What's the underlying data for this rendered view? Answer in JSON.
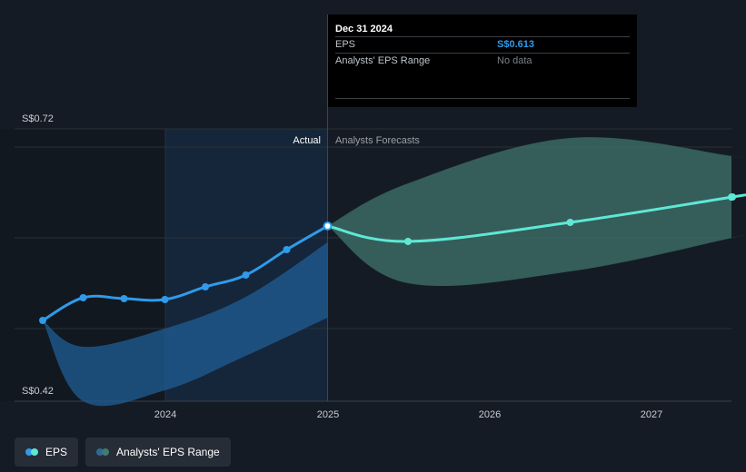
{
  "chart_data": {
    "type": "line",
    "y_axis": {
      "top_label": "S$0.72",
      "bottom_label": "S$0.42",
      "ylim": [
        0.42,
        0.72
      ]
    },
    "x_ticks": [
      "2024",
      "2025",
      "2026",
      "2027"
    ],
    "regions": {
      "actual": "Actual",
      "forecast": "Analysts Forecasts"
    },
    "series": [
      {
        "name": "EPS",
        "actual": [
          {
            "x": "2023-03-31",
            "y": 0.509
          },
          {
            "x": "2023-06-30",
            "y": 0.534
          },
          {
            "x": "2023-09-30",
            "y": 0.533
          },
          {
            "x": "2023-12-31",
            "y": 0.532
          },
          {
            "x": "2024-03-31",
            "y": 0.546
          },
          {
            "x": "2024-06-30",
            "y": 0.559
          },
          {
            "x": "2024-09-30",
            "y": 0.587
          },
          {
            "x": "2024-12-31",
            "y": 0.613
          }
        ],
        "forecast": [
          {
            "x": "2024-12-31",
            "y": 0.613
          },
          {
            "x": "2025-06-30",
            "y": 0.596
          },
          {
            "x": "2026-06-30",
            "y": 0.617
          },
          {
            "x": "2027-06-30",
            "y": 0.645
          }
        ]
      },
      {
        "name": "Analysts' EPS Range",
        "actual_band": [
          {
            "x": "2023-03-31",
            "low": 0.509,
            "high": 0.509
          },
          {
            "x": "2023-06-30",
            "low": 0.42,
            "high": 0.48
          },
          {
            "x": "2023-12-31",
            "low": 0.432,
            "high": 0.5
          },
          {
            "x": "2024-06-30",
            "low": 0.47,
            "high": 0.535
          },
          {
            "x": "2024-12-31",
            "low": 0.512,
            "high": 0.595
          }
        ],
        "forecast_band": [
          {
            "x": "2024-12-31",
            "low": 0.613,
            "high": 0.613
          },
          {
            "x": "2025-06-30",
            "low": 0.55,
            "high": 0.66
          },
          {
            "x": "2026-06-30",
            "low": 0.563,
            "high": 0.71
          },
          {
            "x": "2027-06-30",
            "low": 0.6,
            "high": 0.69
          }
        ]
      }
    ]
  },
  "tooltip": {
    "date": "Dec 31 2024",
    "rows": [
      {
        "label": "EPS",
        "value": "S$0.613"
      },
      {
        "label": "Analysts' EPS Range",
        "value": "No data"
      }
    ]
  },
  "legend": [
    {
      "label": "EPS",
      "colors": [
        "#2f9bea",
        "#5ee8d6"
      ]
    },
    {
      "label": "Analysts' EPS Range",
      "colors": [
        "#2d6a9a",
        "#3f7c72"
      ]
    }
  ],
  "colors": {
    "eps_actual": "#2f9bea",
    "eps_forecast": "#5ee8d6",
    "band_actual": "#1f5e94",
    "band_forecast": "#3d6e67",
    "actual_bg": "#15263a"
  }
}
